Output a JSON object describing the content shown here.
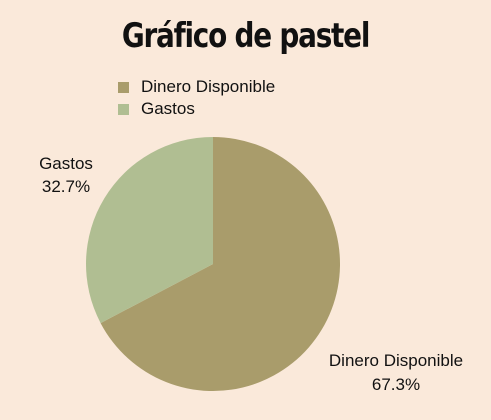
{
  "colors": {
    "background": "#fae9da",
    "slice_dinero": "#a99c6b",
    "slice_gastos": "#b0be92"
  },
  "chart_data": {
    "type": "pie",
    "title": "Gráfico de pastel",
    "legend_position": "top-left",
    "slices": [
      {
        "label": "Dinero Disponible",
        "value": 67.3,
        "value_label": "67.3%",
        "color": "#a99c6b"
      },
      {
        "label": "Gastos",
        "value": 32.7,
        "value_label": "32.7%",
        "color": "#b0be92"
      }
    ],
    "legend": [
      {
        "label": "Dinero Disponible",
        "color": "#a99c6b"
      },
      {
        "label": "Gastos",
        "color": "#b0be92"
      }
    ]
  }
}
